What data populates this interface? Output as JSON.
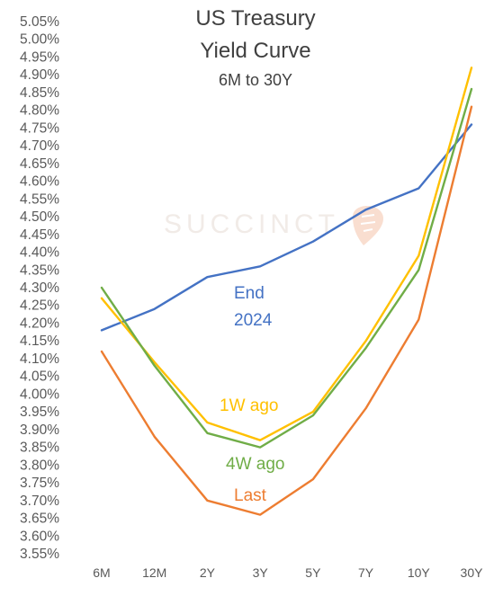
{
  "chart_data": {
    "type": "line",
    "title_lines": [
      "US Treasury",
      "Yield Curve"
    ],
    "subtitle": "6M to 30Y",
    "watermark": "SUCCINCT",
    "categories": [
      "6M",
      "12M",
      "2Y",
      "3Y",
      "5Y",
      "7Y",
      "10Y",
      "30Y"
    ],
    "ylim": [
      3.55,
      5.05
    ],
    "y_tick_step": 0.05,
    "y_tick_format": "percent_2dp",
    "grid": false,
    "legend": "inline labels",
    "series": [
      {
        "name": "End 2024",
        "label_lines": [
          "End",
          "2024"
        ],
        "color": "#4472c4",
        "values": [
          4.18,
          4.24,
          4.33,
          4.36,
          4.43,
          4.52,
          4.58,
          4.76
        ]
      },
      {
        "name": "1W ago",
        "label_lines": [
          "1W ago"
        ],
        "color": "#ffc000",
        "values": [
          4.27,
          4.09,
          3.92,
          3.87,
          3.95,
          4.15,
          4.39,
          4.92
        ]
      },
      {
        "name": "4W ago",
        "label_lines": [
          "4W ago"
        ],
        "color": "#70ad47",
        "values": [
          4.3,
          4.08,
          3.89,
          3.85,
          3.94,
          4.13,
          4.35,
          4.86
        ]
      },
      {
        "name": "Last",
        "label_lines": [
          "Last"
        ],
        "color": "#ed7d31",
        "values": [
          4.12,
          3.88,
          3.7,
          3.66,
          3.76,
          3.96,
          4.21,
          4.81
        ]
      }
    ]
  }
}
